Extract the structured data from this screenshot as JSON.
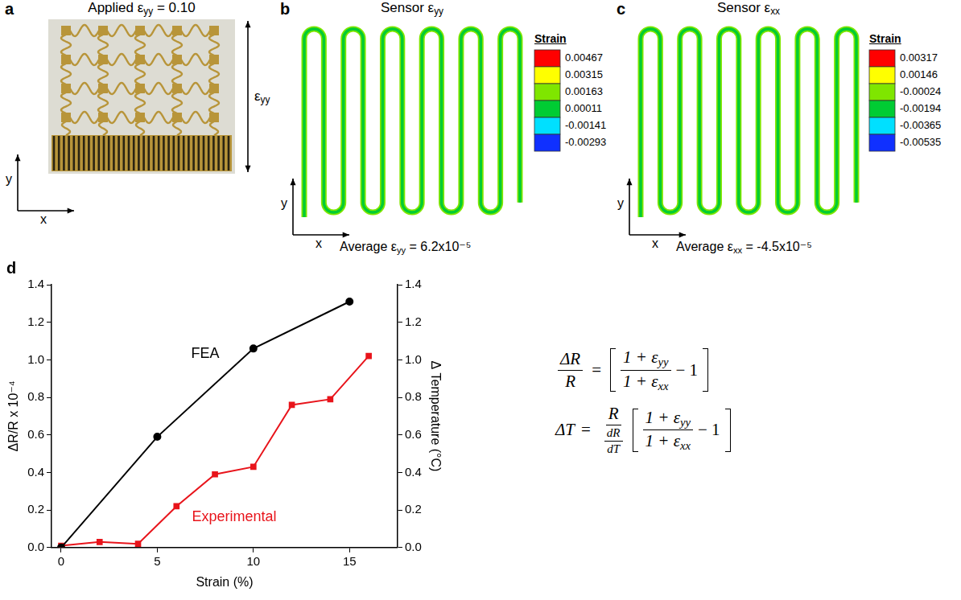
{
  "panels": [
    {
      "letter": "a",
      "title": "Applied εyy = 0.10",
      "arrow_label": "εyy",
      "axes": [
        "x",
        "y"
      ]
    },
    {
      "letter": "b",
      "title": "Sensor εyy",
      "axes": [
        "x",
        "y"
      ],
      "colorbar": {
        "title": "Strain",
        "ticks": [
          0.00467,
          0.00315,
          0.00163,
          0.00011,
          -0.00141,
          -0.00293
        ],
        "colors": [
          "#ff0000",
          "#ffff00",
          "#7fe600",
          "#00cc33",
          "#00e0ff",
          "#1030ff"
        ]
      },
      "caption": "Average εyy = 6.2x10⁻⁵"
    },
    {
      "letter": "c",
      "title": "Sensor εxx",
      "axes": [
        "x",
        "y"
      ],
      "colorbar": {
        "title": "Strain",
        "ticks": [
          0.00317,
          0.00146,
          -0.00024,
          -0.00194,
          -0.00365,
          -0.00535
        ],
        "colors": [
          "#ff0000",
          "#ffff00",
          "#7fe600",
          "#00cc33",
          "#00e0ff",
          "#1030ff"
        ]
      },
      "caption": "Average εxx = -4.5x10⁻⁵"
    }
  ],
  "chart_letter": "d",
  "chart_data": {
    "type": "line",
    "x_label": "Strain (%)",
    "y_label": "ΔR/R x 10⁻⁴",
    "y2_label": "Δ Temperature (°C)",
    "xlim": [
      -0.5,
      17.5
    ],
    "xticks": [
      0,
      5,
      10,
      15
    ],
    "ylim": [
      0,
      1.4
    ],
    "yticks": [
      {
        "value": 0,
        "label": "0.0"
      },
      {
        "value": 0.2,
        "label": "0.2"
      },
      {
        "value": 0.4,
        "label": "0.4"
      },
      {
        "value": 0.6,
        "label": "0.6"
      },
      {
        "value": 0.8,
        "label": "0.8"
      },
      {
        "value": 1,
        "label": "1.0"
      },
      {
        "value": 1.2,
        "label": "1.2"
      },
      {
        "value": 1.4,
        "label": "1.4"
      }
    ],
    "y2lim": [
      0,
      1.4
    ],
    "y2ticks": [
      {
        "value": 0,
        "label": "0.0"
      },
      {
        "value": 0.2,
        "label": "0.2"
      },
      {
        "value": 0.4,
        "label": "0.4"
      },
      {
        "value": 0.6,
        "label": "0.6"
      },
      {
        "value": 0.8,
        "label": "0.8"
      },
      {
        "value": 1,
        "label": "1.0"
      },
      {
        "value": 1.2,
        "label": "1.2"
      },
      {
        "value": 1.4,
        "label": "1.4"
      }
    ],
    "grid": false,
    "series": [
      {
        "name": "FEA",
        "color": "#000000",
        "marker": "circle",
        "x": [
          0,
          5,
          10,
          15
        ],
        "values": [
          0,
          0.59,
          1.06,
          1.31
        ]
      },
      {
        "name": "Experimental",
        "color": "#e8141b",
        "marker": "square",
        "x": [
          0,
          2,
          4,
          6,
          8,
          10,
          12,
          14,
          16
        ],
        "values": [
          0.01,
          0.03,
          0.02,
          0.22,
          0.39,
          0.43,
          0.76,
          0.79,
          1.02
        ]
      }
    ]
  },
  "equations": [
    {
      "lhs": {
        "num": "ΔR",
        "den": "R"
      },
      "relation": "=",
      "rhs": {
        "num": "1 + εyy",
        "den": "1 + εxx",
        "tail": "− 1"
      }
    },
    {
      "lhs": "ΔT",
      "relation": "=",
      "factor": {
        "num": "R",
        "den": {
          "num": "dR",
          "den": "dT"
        }
      },
      "rhs": {
        "num": "1 + εyy",
        "den": "1 + εxx",
        "tail": "− 1"
      }
    }
  ]
}
